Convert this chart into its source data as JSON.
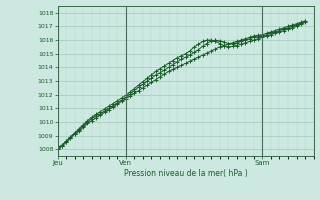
{
  "xlabel": "Pression niveau de la mer( hPa )",
  "bg_color": "#cce8e0",
  "grid_color_minor": "#b8d8d0",
  "grid_color_major": "#a0c8bc",
  "line_color": "#1a5c2a",
  "line_color2": "#2a7a3a",
  "ylim": [
    1007.5,
    1018.5
  ],
  "yticks": [
    1008,
    1009,
    1010,
    1011,
    1012,
    1013,
    1014,
    1015,
    1016,
    1017,
    1018
  ],
  "day_labels": [
    "Jeu",
    "Ven",
    "Sam"
  ],
  "day_positions": [
    0,
    48,
    144
  ],
  "total_hours": 180,
  "series1_x": [
    0,
    3,
    6,
    9,
    12,
    15,
    18,
    21,
    24,
    27,
    30,
    33,
    36,
    39,
    42,
    45,
    48,
    51,
    54,
    57,
    60,
    63,
    66,
    69,
    72,
    75,
    78,
    81,
    84,
    87,
    90,
    93,
    96,
    99,
    102,
    105,
    108,
    111,
    114,
    117,
    120,
    123,
    126,
    129,
    132,
    135,
    138,
    141,
    144,
    147,
    150,
    153,
    156,
    159,
    162,
    165,
    168,
    171,
    174
  ],
  "series1_y": [
    1008.0,
    1008.2,
    1008.5,
    1008.8,
    1009.1,
    1009.3,
    1009.6,
    1009.9,
    1010.1,
    1010.3,
    1010.5,
    1010.7,
    1010.9,
    1011.1,
    1011.3,
    1011.5,
    1011.7,
    1011.9,
    1012.1,
    1012.3,
    1012.5,
    1012.7,
    1012.9,
    1013.1,
    1013.3,
    1013.5,
    1013.7,
    1013.85,
    1014.0,
    1014.15,
    1014.3,
    1014.45,
    1014.6,
    1014.75,
    1014.9,
    1015.05,
    1015.2,
    1015.35,
    1015.5,
    1015.6,
    1015.7,
    1015.8,
    1015.9,
    1016.0,
    1016.1,
    1016.2,
    1016.3,
    1016.35,
    1016.4,
    1016.5,
    1016.6,
    1016.7,
    1016.8,
    1016.9,
    1017.0,
    1017.1,
    1017.2,
    1017.3,
    1017.4
  ],
  "series2_x": [
    0,
    3,
    6,
    9,
    12,
    15,
    18,
    21,
    24,
    27,
    30,
    33,
    36,
    39,
    42,
    45,
    48,
    51,
    54,
    57,
    60,
    63,
    66,
    69,
    72,
    75,
    78,
    81,
    84,
    87,
    90,
    93,
    96,
    99,
    102,
    105,
    108,
    111,
    114,
    117,
    120,
    123,
    126,
    129,
    132,
    135,
    138,
    141,
    144,
    147,
    150,
    153,
    156,
    159,
    162,
    165,
    168,
    171,
    174
  ],
  "series2_y": [
    1008.1,
    1008.3,
    1008.6,
    1008.9,
    1009.2,
    1009.5,
    1009.8,
    1010.1,
    1010.35,
    1010.55,
    1010.75,
    1010.95,
    1011.15,
    1011.35,
    1011.55,
    1011.75,
    1011.95,
    1012.2,
    1012.45,
    1012.7,
    1012.95,
    1013.2,
    1013.45,
    1013.7,
    1013.9,
    1014.1,
    1014.3,
    1014.5,
    1014.7,
    1014.85,
    1015.0,
    1015.2,
    1015.5,
    1015.7,
    1015.9,
    1016.0,
    1016.0,
    1015.9,
    1015.75,
    1015.6,
    1015.5,
    1015.55,
    1015.6,
    1015.7,
    1015.8,
    1015.9,
    1016.0,
    1016.1,
    1016.2,
    1016.3,
    1016.4,
    1016.5,
    1016.6,
    1016.7,
    1016.8,
    1016.9,
    1017.0,
    1017.15,
    1017.3
  ],
  "series3_x": [
    0,
    3,
    6,
    9,
    12,
    15,
    18,
    21,
    24,
    27,
    30,
    33,
    36,
    39,
    42,
    45,
    48,
    51,
    54,
    57,
    60,
    63,
    66,
    69,
    72,
    75,
    78,
    81,
    84,
    87,
    90,
    93,
    96,
    99,
    102,
    105,
    108,
    111,
    114,
    117,
    120,
    123,
    126,
    129,
    132,
    135,
    138,
    141,
    144,
    147,
    150,
    153,
    156,
    159,
    162,
    165,
    168,
    171,
    174
  ],
  "series3_y": [
    1008.05,
    1008.25,
    1008.55,
    1008.85,
    1009.15,
    1009.4,
    1009.7,
    1010.0,
    1010.25,
    1010.45,
    1010.6,
    1010.8,
    1011.0,
    1011.2,
    1011.4,
    1011.6,
    1011.8,
    1012.05,
    1012.3,
    1012.55,
    1012.75,
    1013.0,
    1013.2,
    1013.45,
    1013.6,
    1013.8,
    1014.0,
    1014.2,
    1014.4,
    1014.6,
    1014.75,
    1014.9,
    1015.1,
    1015.3,
    1015.55,
    1015.75,
    1015.95,
    1016.0,
    1015.95,
    1015.85,
    1015.75,
    1015.75,
    1015.8,
    1015.9,
    1016.0,
    1016.1,
    1016.2,
    1016.25,
    1016.3,
    1016.4,
    1016.5,
    1016.6,
    1016.7,
    1016.8,
    1016.9,
    1017.0,
    1017.1,
    1017.25,
    1017.4
  ]
}
